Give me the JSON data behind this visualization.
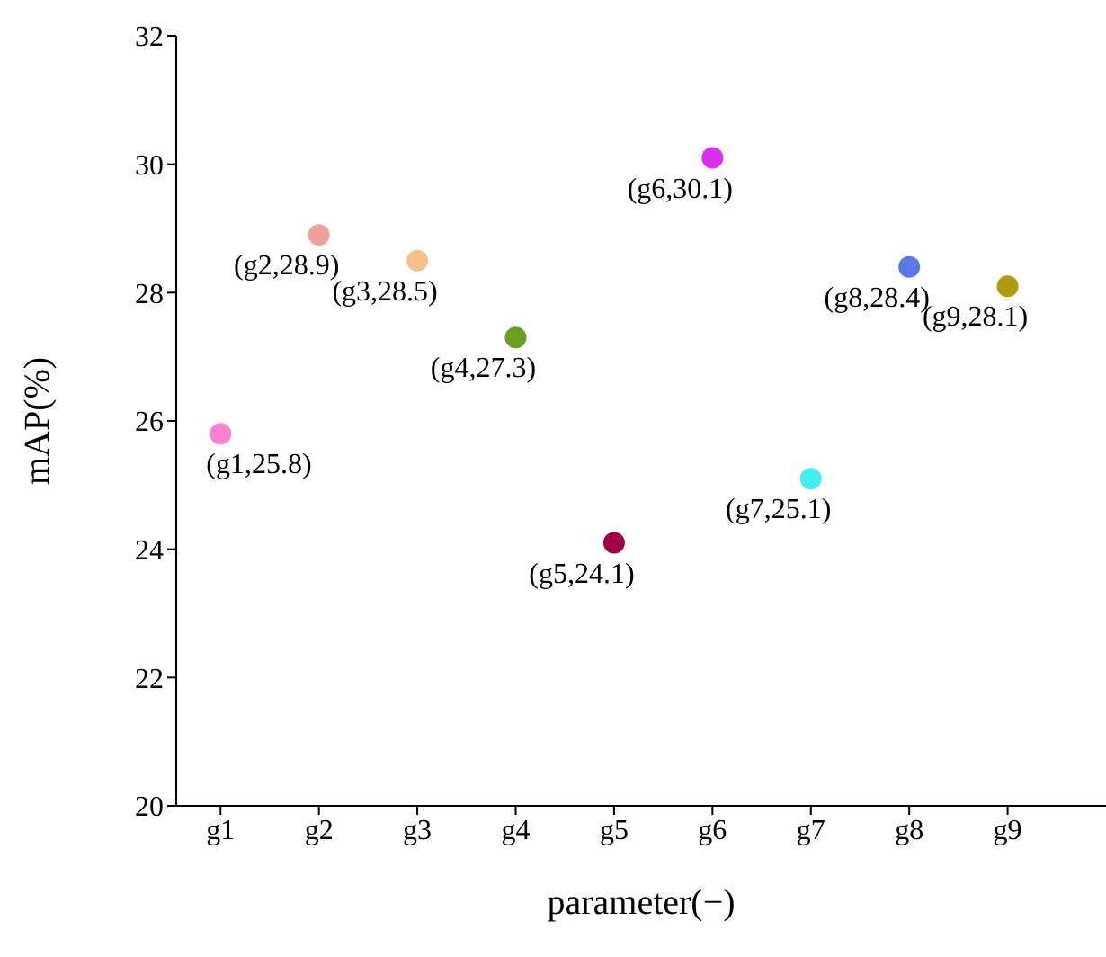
{
  "chart_data": {
    "type": "scatter",
    "xlabel": "parameter(−)",
    "ylabel": "mAP(%)",
    "categories": [
      "g1",
      "g2",
      "g3",
      "g4",
      "g5",
      "g6",
      "g7",
      "g8",
      "g9"
    ],
    "values": [
      25.8,
      28.9,
      28.5,
      27.3,
      24.1,
      30.1,
      25.1,
      28.4,
      28.1
    ],
    "colors": [
      "#ff80d0",
      "#f4a09a",
      "#f5c08c",
      "#6aa021",
      "#a00048",
      "#d930f0",
      "#40f0f0",
      "#5a78e8",
      "#b09a10"
    ],
    "value_labels": [
      "(g1,25.8)",
      "(g2,28.9)",
      "(g3,28.5)",
      "(g4,27.3)",
      "(g5,24.1)",
      "(g6,30.1)",
      "(g7,25.1)",
      "(g8,28.4)",
      "(g9,28.1)"
    ],
    "ylim": [
      20,
      32
    ],
    "yticks": [
      20,
      22,
      24,
      26,
      28,
      30,
      32
    ],
    "grid": false,
    "legend": false,
    "marker": "circle"
  }
}
